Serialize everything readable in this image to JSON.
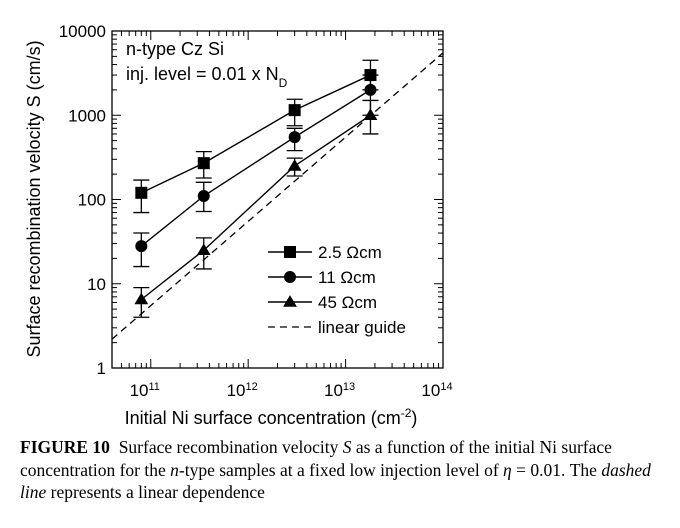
{
  "chart_data": {
    "type": "scatter",
    "xscale": "log",
    "yscale": "log",
    "xlim": [
      40000000000.0,
      100000000000000.0
    ],
    "ylim": [
      1,
      10000
    ],
    "xticks": [
      100000000000.0,
      1000000000000.0,
      10000000000000.0,
      100000000000000.0
    ],
    "xtick_labels": [
      {
        "base": "10",
        "exp": "11"
      },
      {
        "base": "10",
        "exp": "12"
      },
      {
        "base": "10",
        "exp": "13"
      },
      {
        "base": "10",
        "exp": "14"
      }
    ],
    "yticks": [
      1,
      10,
      100,
      1000,
      10000
    ],
    "ytick_labels": [
      "1",
      "10",
      "100",
      "1000",
      "10000"
    ],
    "xlabel": {
      "text": "Initial Ni surface concentration (cm",
      "sup": "-2",
      "tail": ")"
    },
    "ylabel": "Surface recombination velocity S (cm/s)",
    "annotation": {
      "line1": "n-type Cz Si",
      "line2_text": "inj. level = 0.01 x N",
      "line2_sub": "D"
    },
    "legend_position": "lower-right",
    "series": [
      {
        "name": "2.5 Ωcm",
        "marker": "square",
        "x": [
          80000000000.0,
          350000000000.0,
          3000000000000.0,
          18000000000000.0
        ],
        "y": [
          120,
          270,
          1150,
          3000
        ],
        "ylow": [
          70,
          180,
          750,
          2000
        ],
        "yhigh": [
          170,
          370,
          1550,
          4500
        ]
      },
      {
        "name": "11 Ωcm",
        "marker": "circle",
        "x": [
          80000000000.0,
          350000000000.0,
          3000000000000.0,
          18000000000000.0
        ],
        "y": [
          28,
          110,
          550,
          2000
        ],
        "ylow": [
          16,
          72,
          380,
          1000
        ],
        "yhigh": [
          40,
          160,
          700,
          3000
        ]
      },
      {
        "name": "45 Ωcm",
        "marker": "triangle",
        "x": [
          80000000000.0,
          350000000000.0,
          3000000000000.0,
          18000000000000.0
        ],
        "y": [
          6.5,
          25,
          250,
          1000
        ],
        "ylow": [
          4,
          15,
          190,
          600
        ],
        "yhigh": [
          9,
          35,
          310,
          1500
        ]
      }
    ],
    "guide": {
      "name": "linear guide",
      "style": "dashed",
      "x": [
        40000000000.0,
        100000000000000.0
      ],
      "y": [
        2.2,
        5500
      ]
    }
  },
  "caption": {
    "label": "FIGURE 10",
    "parts": [
      {
        "t": "Surface recombination velocity "
      },
      {
        "t": "S",
        "i": true
      },
      {
        "t": " as a function of the initial Ni surface concentration for the "
      },
      {
        "t": "n",
        "i": true
      },
      {
        "t": "-type samples at a fixed low injection level of "
      },
      {
        "t": "η",
        "i": true
      },
      {
        "t": " = 0.01. The "
      },
      {
        "t": "dashed line",
        "i": true
      },
      {
        "t": " represents a linear dependence"
      }
    ]
  }
}
